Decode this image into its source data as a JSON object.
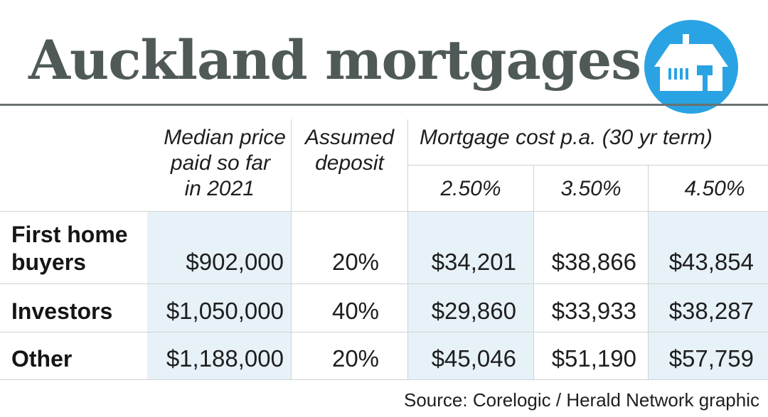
{
  "chart_data": {
    "type": "table",
    "title": "Auckland mortgages",
    "columns": {
      "median_price": "Median price paid so far in 2021",
      "deposit": "Assumed deposit",
      "mortgage_group": "Mortgage cost p.a. (30 yr term)",
      "rates": [
        "2.50%",
        "3.50%",
        "4.50%"
      ]
    },
    "rows": [
      {
        "label": "First home buyers",
        "median_price": "$902,000",
        "deposit": "20%",
        "costs": [
          "$34,201",
          "$38,866",
          "$43,854"
        ]
      },
      {
        "label": "Investors",
        "median_price": "$1,050,000",
        "deposit": "40%",
        "costs": [
          "$29,860",
          "$33,933",
          "$38,287"
        ]
      },
      {
        "label": "Other",
        "median_price": "$1,188,000",
        "deposit": "20%",
        "costs": [
          "$45,046",
          "$51,190",
          "$57,759"
        ]
      }
    ],
    "source": "Source: Corelogic / Herald Network graphic"
  },
  "header": {
    "median_line1": "Median price",
    "median_line2": "paid so far",
    "median_line3": "in 2021",
    "deposit_line1": "Assumed",
    "deposit_line2": "deposit"
  },
  "row_label_lines": {
    "first_line1": "First home",
    "first_line2": "buyers"
  },
  "icon": "house-icon",
  "colors": {
    "title": "#4f5a58",
    "badge": "#29a3e3",
    "cell_shade": "#e7f1f8",
    "rule": "#6a7270"
  }
}
